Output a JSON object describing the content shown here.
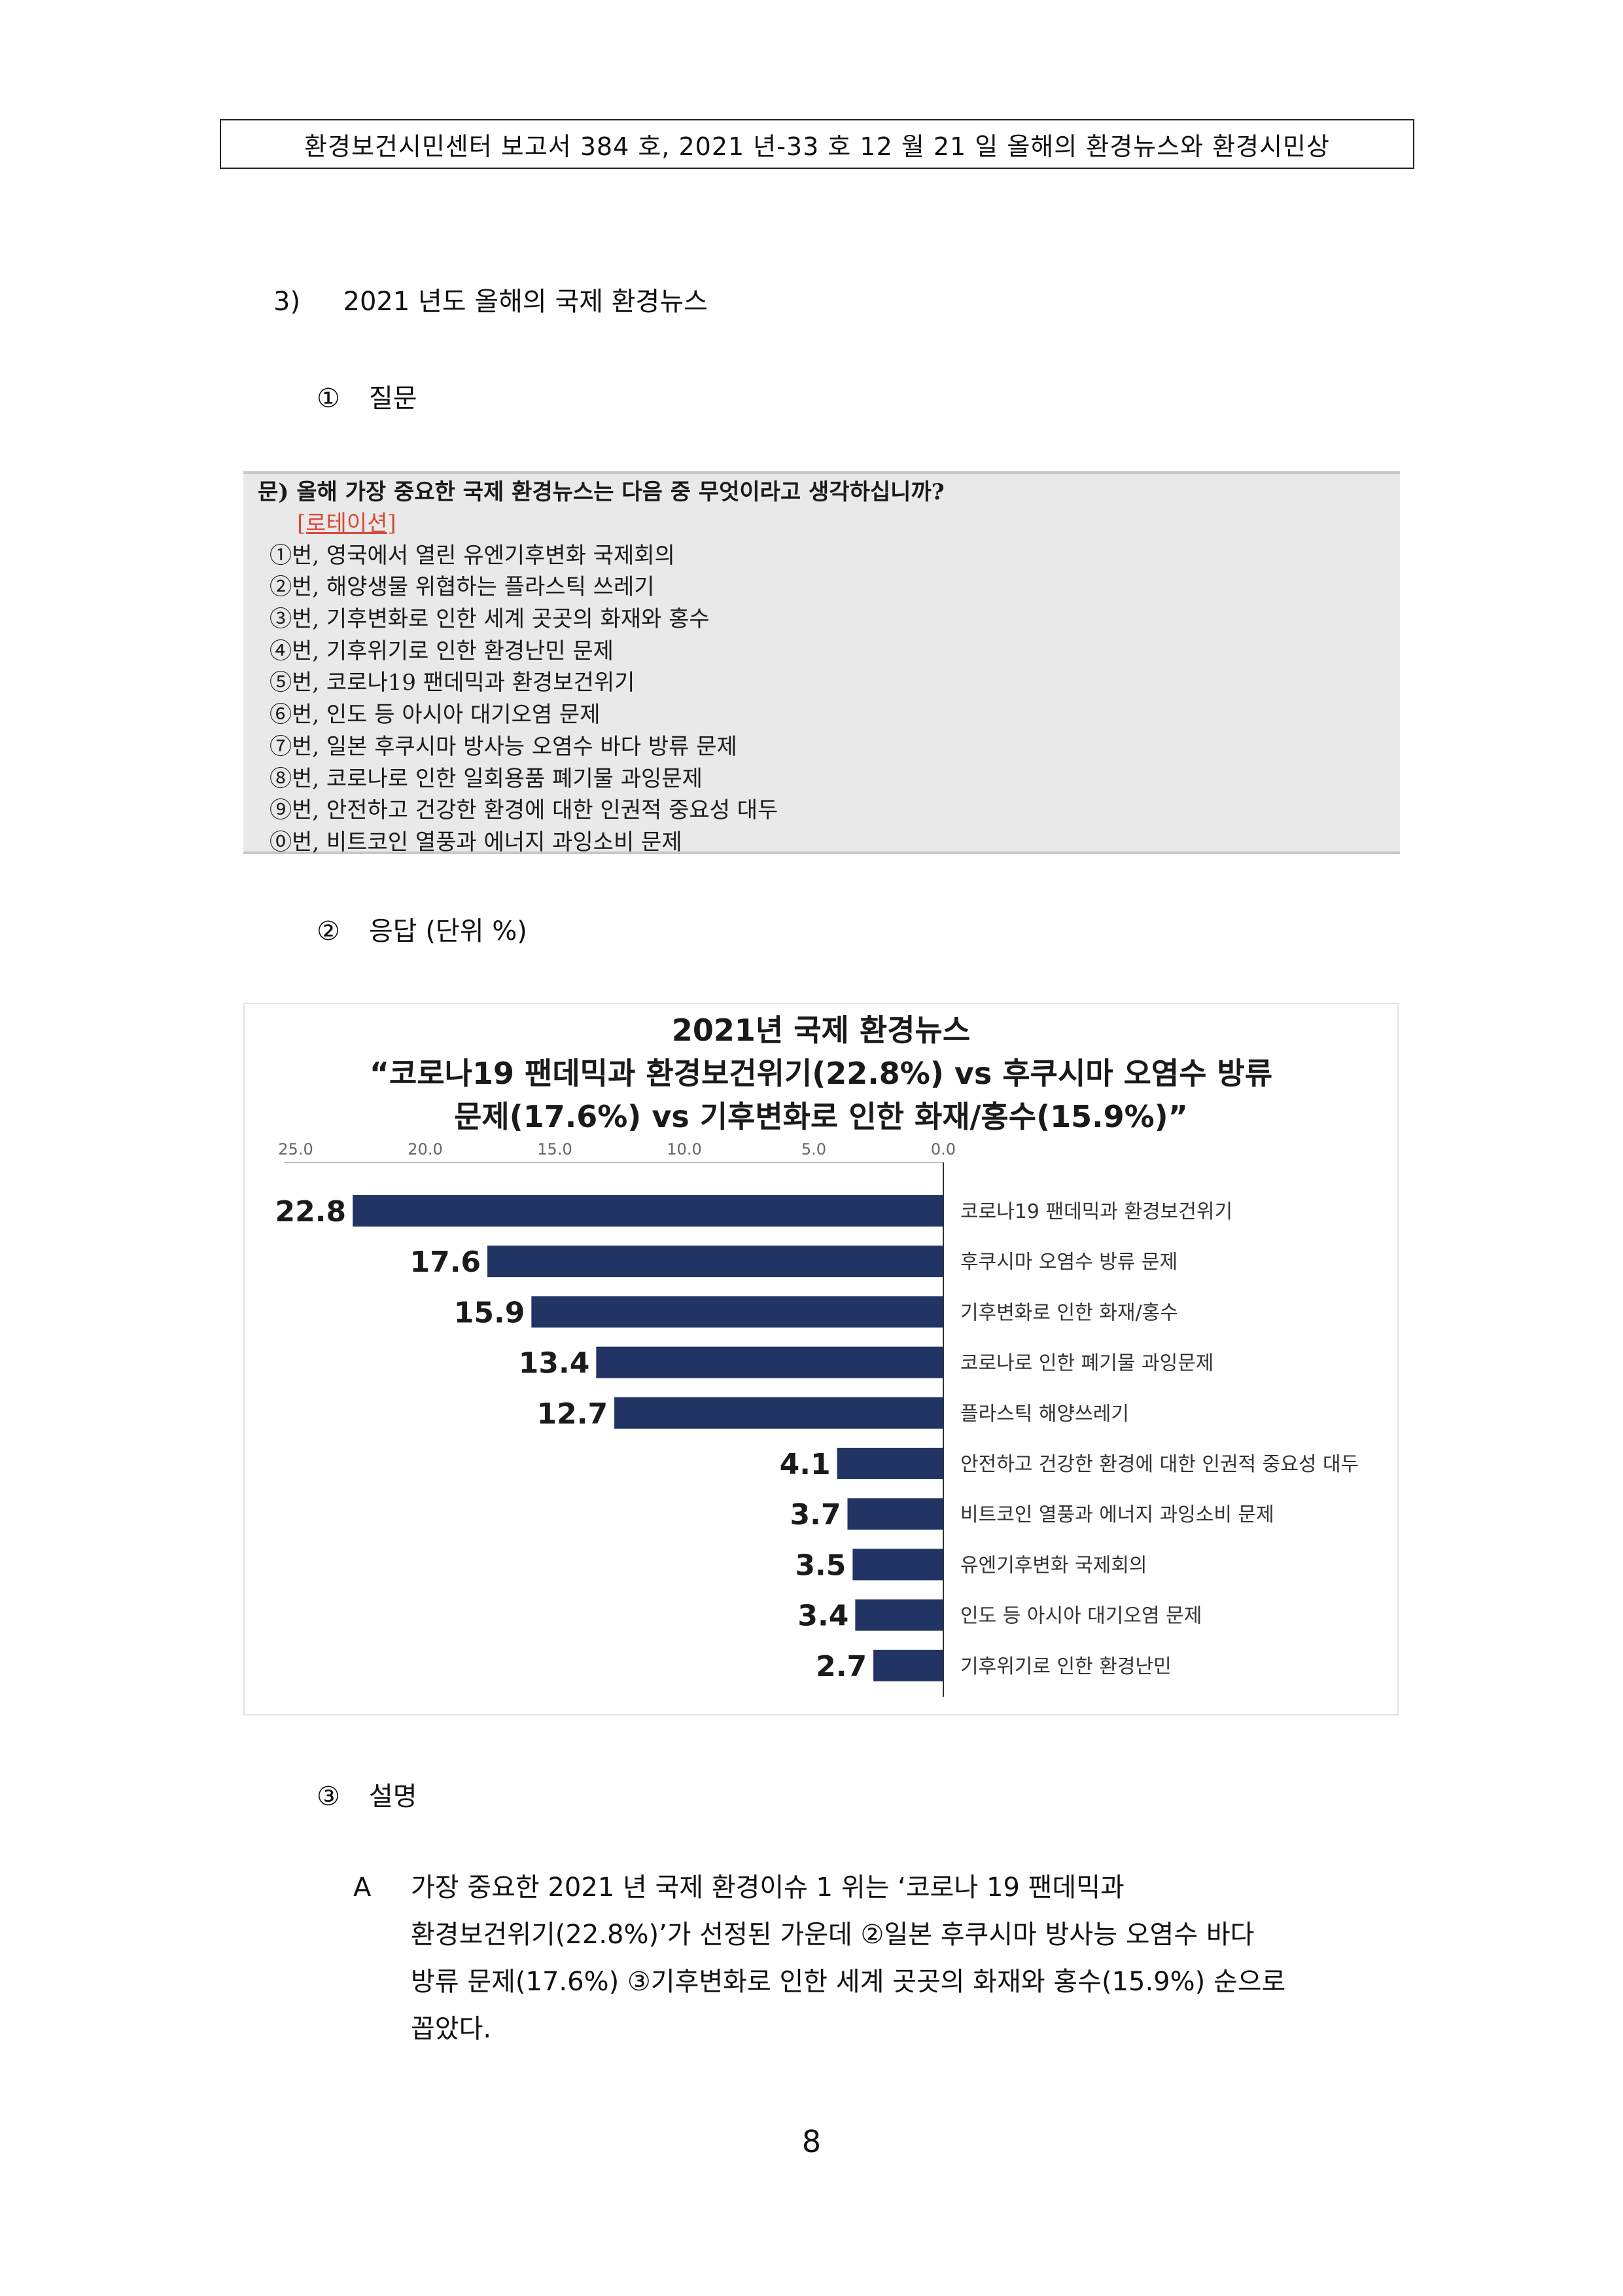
{
  "header": {
    "text": "환경보건시민센터  보고서  384 호, 2021 년-33 호  12 월 21 일  올해의  환경뉴스와  환경시민상"
  },
  "section": {
    "number": "3)",
    "title": "2021 년도  올해의  국제  환경뉴스"
  },
  "question_heading": {
    "marker": "①",
    "label": "질문"
  },
  "question": {
    "title": "문) 올해 가장 중요한 국제 환경뉴스는 다음 중 무엇이라고 생각하십니까?",
    "rotation": "[로테이션]",
    "options": [
      "①번, 영국에서 열린 유엔기후변화 국제회의",
      "②번, 해양생물 위협하는 플라스틱 쓰레기",
      "③번, 기후변화로 인한 세계 곳곳의 화재와 홍수",
      "④번, 기후위기로 인한 환경난민 문제",
      "⑤번, 코로나19 팬데믹과 환경보건위기",
      "⑥번, 인도 등 아시아 대기오염 문제",
      "⑦번, 일본 후쿠시마 방사능 오염수 바다 방류 문제",
      "⑧번, 코로나로 인한 일회용품 폐기물 과잉문제",
      "⑨번, 안전하고 건강한 환경에 대한 인권적 중요성 대두",
      "⓪번, 비트코인 열풍과 에너지 과잉소비 문제"
    ]
  },
  "answer_heading": {
    "marker": "②",
    "label": "응답  (단위  %)"
  },
  "chart_data": {
    "type": "bar",
    "orientation": "horizontal",
    "title_lines": [
      "2021년 국제 환경뉴스",
      "“코로나19 팬데믹과 환경보건위기(22.8%) vs 후쿠시마 오염수 방류",
      "문제(17.6%) vs 기후변화로 인한 화재/홍수(15.9%)”"
    ],
    "axis_ticks": [
      "25.0",
      "20.0",
      "15.0",
      "10.0",
      "5.0",
      "0.0"
    ],
    "xlim": [
      0,
      25
    ],
    "categories": [
      "코로나19 팬데믹과 환경보건위기",
      "후쿠시마 오염수 방류 문제",
      "기후변화로 인한 화재/홍수",
      "코로나로 인한 폐기물 과잉문제",
      "플라스틱 해양쓰레기",
      "안전하고 건강한 환경에 대한 인권적 중요성 대두",
      "비트코인 열풍과 에너지 과잉소비 문제",
      "유엔기후변화 국제회의",
      "인도 등 아시아 대기오염 문제",
      "기후위기로 인한 환경난민"
    ],
    "values": [
      22.8,
      17.6,
      15.9,
      13.4,
      12.7,
      4.1,
      3.7,
      3.5,
      3.4,
      2.7
    ],
    "value_labels": [
      "22.8",
      "17.6",
      "15.9",
      "13.4",
      "12.7",
      "4.1",
      "3.7",
      "3.5",
      "3.4",
      "2.7"
    ],
    "bar_color": "#223463",
    "grid": false,
    "legend": "none"
  },
  "explain_heading": {
    "marker": "③",
    "label": "설명"
  },
  "explanation": {
    "letter": "A",
    "lines": [
      "가장  중요한  2021 년  국제  환경이슈  1 위는  ‘코로나 19  팬데믹과",
      "환경보건위기(22.8%)’가  선정된  가운데  ②일본  후쿠시마  방사능  오염수  바다",
      "방류  문제(17.6%)  ③기후변화로  인한  세계  곳곳의  화재와  홍수(15.9%)  순으로",
      "꼽았다."
    ]
  },
  "page_number": "8"
}
